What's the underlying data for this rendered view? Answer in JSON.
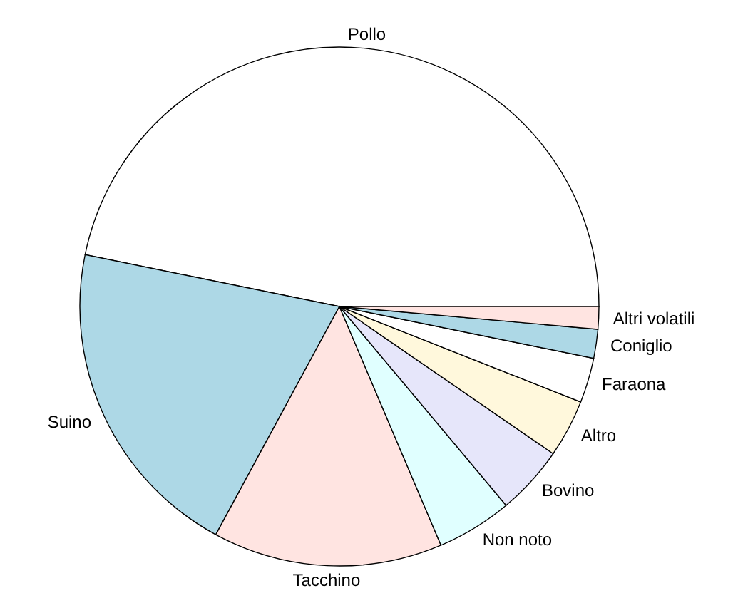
{
  "chart_data": {
    "type": "pie",
    "categories": [
      "Pollo",
      "Suino",
      "Tacchino",
      "Non noto",
      "Bovino",
      "Altro",
      "Faraona",
      "Coniglio",
      "Altri volatili"
    ],
    "values": [
      46.8,
      20.3,
      14.3,
      4.7,
      4.3,
      3.6,
      2.8,
      1.8,
      1.4
    ],
    "colors": [
      "#ffffff",
      "#add8e6",
      "#ffe4e1",
      "#e0ffff",
      "#e6e6fa",
      "#fff8dc",
      "#ffffff",
      "#add8e6",
      "#ffe4e1"
    ],
    "legend": false
  }
}
